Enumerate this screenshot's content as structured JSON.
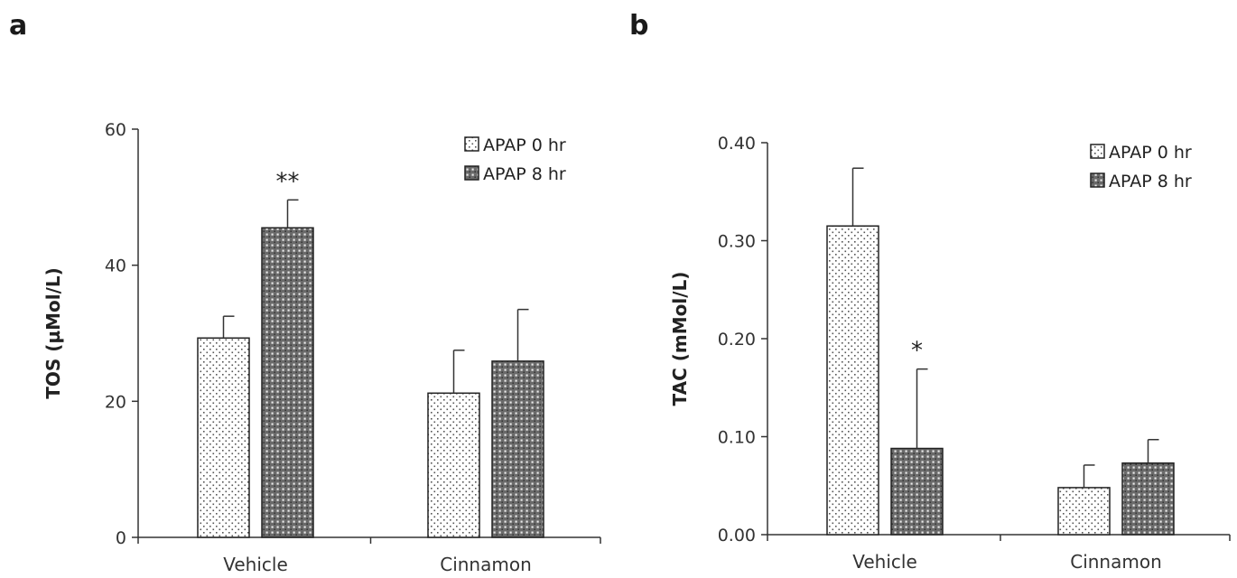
{
  "chart_data": [
    {
      "panel": "a",
      "type": "bar",
      "categories": [
        "Vehicle",
        "Cinnamon"
      ],
      "ylabel": "TOS (µMol/L)",
      "ylim": [
        0,
        60
      ],
      "yticks": [
        "0",
        "20",
        "40",
        "60"
      ],
      "legend_position": "top-right",
      "grid": false,
      "series": [
        {
          "name": "APAP 0 hr",
          "values": [
            29.3,
            21.2
          ],
          "errors": [
            3.2,
            6.3
          ],
          "pattern": "dots-light"
        },
        {
          "name": "APAP 8 hr",
          "values": [
            45.5,
            25.9
          ],
          "errors": [
            4.1,
            7.6
          ],
          "pattern": "dots-dark"
        }
      ],
      "annotations": [
        {
          "text": "**",
          "category": 0,
          "series": 1
        }
      ]
    },
    {
      "panel": "b",
      "type": "bar",
      "categories": [
        "Vehicle",
        "Cinnamon"
      ],
      "ylabel": "TAC (mMol/L)",
      "ylim": [
        0,
        0.4
      ],
      "yticks": [
        "0.00",
        "0.10",
        "0.20",
        "0.30",
        "0.40"
      ],
      "legend_position": "top-right",
      "grid": false,
      "series": [
        {
          "name": "APAP 0 hr",
          "values": [
            0.315,
            0.048
          ],
          "errors": [
            0.059,
            0.023
          ],
          "pattern": "dots-light"
        },
        {
          "name": "APAP 8 hr",
          "values": [
            0.088,
            0.073
          ],
          "errors": [
            0.081,
            0.024
          ],
          "pattern": "dots-dark"
        }
      ],
      "annotations": [
        {
          "text": "*",
          "category": 0,
          "series": 1
        }
      ]
    }
  ]
}
